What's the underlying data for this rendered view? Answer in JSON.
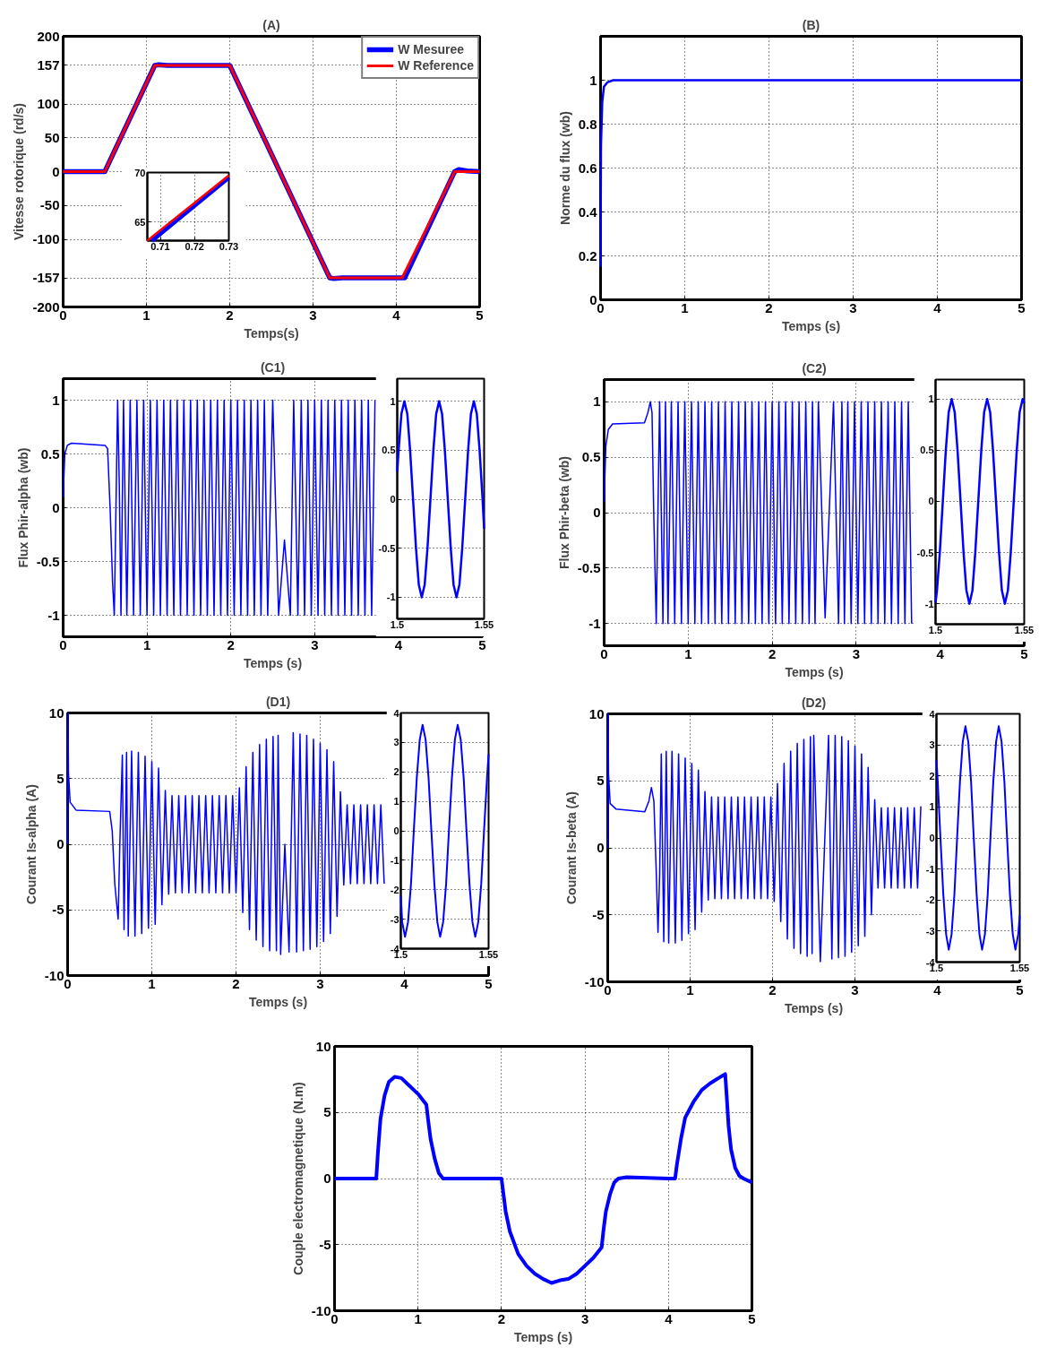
{
  "chart_data": [
    {
      "type": "line",
      "title": "(A)",
      "xlabel": "Temps(s)",
      "ylabel": "Vitesse rotorique (rd/s)",
      "xlim": [
        0,
        5
      ],
      "ylim": [
        -200,
        200
      ],
      "xticks": [
        0,
        1,
        2,
        3,
        4,
        5
      ],
      "yticks": [
        -200,
        -157,
        -100,
        -50,
        0,
        50,
        100,
        157,
        200
      ],
      "grid": true,
      "legend": "top right",
      "series": [
        {
          "name": "W Mesuree",
          "color": "#0000ff",
          "x": [
            0,
            0.5,
            1.1,
            1.15,
            1.25,
            2,
            3.2,
            3.25,
            3.35,
            4.1,
            4.7,
            4.75,
            4.85,
            5
          ],
          "values": [
            0,
            0,
            157,
            158,
            157,
            157,
            -157,
            -158,
            -157,
            -157,
            0,
            3,
            1,
            0
          ]
        },
        {
          "name": "W Reference",
          "color": "#ff0000",
          "x": [
            0,
            0.5,
            1.1,
            2,
            3.2,
            4.07,
            4.7,
            5
          ],
          "values": [
            0,
            0,
            157,
            157,
            -157,
            -157,
            0,
            0
          ]
        }
      ]
    },
    {
      "type": "line",
      "xlim": [
        0.7062,
        0.73
      ],
      "ylim": [
        63.1,
        70
      ],
      "xticks": [
        0.71,
        0.72,
        0.73
      ],
      "yticks": [
        65,
        70
      ],
      "grid": true,
      "series": [
        {
          "color": "#0000ff",
          "x": [
            0.7075,
            0.73
          ],
          "values": [
            63.1,
            69.5
          ]
        },
        {
          "color": "#ff0000",
          "x": [
            0.7062,
            0.73
          ],
          "values": [
            63.1,
            69.7
          ]
        }
      ]
    },
    {
      "type": "line",
      "title": "(B)",
      "xlabel": "Temps (s)",
      "ylabel": "Norme du flux (wb)",
      "xlim": [
        0,
        5
      ],
      "ylim": [
        0,
        1.2
      ],
      "xticks": [
        0,
        1,
        2,
        3,
        4,
        5
      ],
      "yticks": [
        0,
        0.2,
        0.4,
        0.6,
        0.8,
        1
      ],
      "grid": true,
      "series": [
        {
          "color": "#0000ff",
          "x": [
            0,
            0.005,
            0.02,
            0.04,
            0.08,
            0.15,
            5
          ],
          "values": [
            0.15,
            0.7,
            0.9,
            0.97,
            0.99,
            1,
            1
          ]
        }
      ]
    },
    {
      "type": "line",
      "title": "(C1)",
      "xlabel": "Temps (s)",
      "ylabel": "Flux Phir-alpha (wb)",
      "xlim": [
        0,
        5
      ],
      "ylim": [
        -1.2,
        1.2
      ],
      "xticks": [
        0,
        1,
        2,
        3,
        4,
        5
      ],
      "yticks": [
        -1,
        -0.5,
        0,
        0.5,
        1
      ],
      "grid": true,
      "series": [
        {
          "color": "#0000ff",
          "x": [
            0,
            0.02,
            0.05,
            0.1,
            0.5,
            0.53,
            0.56,
            0.59,
            0.61,
            0.63,
            0.65,
            0.67,
            0.69,
            0.72,
            0.76,
            0.8,
            0.84,
            0.88,
            0.92,
            0.96,
            1,
            1.04,
            1.08,
            1.12,
            1.16,
            1.2,
            1.24,
            1.28,
            1.32,
            1.36,
            1.4,
            1.44,
            1.48,
            1.52,
            1.56,
            1.6,
            1.64,
            1.68,
            1.72,
            1.76,
            1.8,
            1.84,
            1.88,
            1.92,
            1.96,
            2,
            2.04,
            2.08,
            2.12,
            2.16,
            2.2,
            2.24,
            2.28,
            2.32,
            2.36,
            2.4,
            2.44,
            2.5,
            2.57,
            2.64,
            2.71,
            2.75,
            2.8,
            2.84,
            2.88,
            2.92,
            2.96,
            3,
            3.04,
            3.08,
            3.12,
            3.16,
            3.2,
            3.24,
            3.28,
            3.32,
            3.36,
            3.4,
            3.44,
            3.48,
            3.52,
            3.56,
            3.6,
            3.64,
            3.68,
            3.72
          ],
          "values": [
            0.1,
            0.5,
            0.58,
            0.6,
            0.58,
            0.55,
            0,
            -0.7,
            -1,
            0,
            1,
            0.2,
            -1,
            1,
            -1,
            1,
            -1,
            1,
            -1,
            1,
            -1,
            1,
            -1,
            1,
            -1,
            1,
            -1,
            1,
            -1,
            1,
            -1,
            1,
            -1,
            1,
            -1,
            1,
            -1,
            1,
            -1,
            1,
            -1,
            1,
            -1,
            1,
            -1,
            1,
            -1,
            1,
            -1,
            1,
            -1,
            1,
            -1,
            1,
            -1,
            1,
            -1,
            1,
            -1,
            -0.3,
            -1,
            1,
            -1,
            1,
            -1,
            1,
            -1,
            1,
            -1,
            1,
            -1,
            1,
            -1,
            1,
            -1,
            1,
            -1,
            1,
            -1,
            1,
            -1,
            1,
            -1,
            1,
            -1,
            1
          ]
        }
      ]
    },
    {
      "type": "line",
      "x": [
        1.5,
        1.5008,
        1.5024,
        1.5041,
        1.5058,
        1.5074,
        1.5091,
        1.5108,
        1.5124,
        1.5141,
        1.5158,
        1.5174,
        1.5191,
        1.5208,
        1.5224,
        1.5241,
        1.5258,
        1.5274,
        1.5291,
        1.5308,
        1.5324,
        1.5341,
        1.5358,
        1.5374,
        1.5391,
        1.5408,
        1.5424,
        1.5441,
        1.5458,
        1.5474,
        1.5491,
        1.55
      ],
      "xlim": [
        1.5,
        1.55
      ],
      "ylim": [
        -1.22,
        1.23
      ],
      "xticks": [
        1.5,
        1.55
      ],
      "yticks": [
        -1,
        -0.5,
        0,
        0.5,
        1
      ],
      "grid": "y",
      "series": [
        {
          "color": "#0000ff",
          "values": [
            0.28,
            0.5,
            0.87,
            1,
            0.87,
            0.5,
            0,
            -0.5,
            -0.87,
            -1,
            -0.87,
            -0.5,
            0,
            0.5,
            0.87,
            1,
            0.87,
            0.5,
            0,
            -0.5,
            -0.87,
            -1,
            -0.87,
            -0.5,
            0,
            0.5,
            0.87,
            1,
            0.87,
            0.5,
            0,
            -0.3
          ]
        }
      ]
    },
    {
      "type": "line",
      "title": "(C2)",
      "xlabel": "Temps (s)",
      "ylabel": "Flux Phir-beta (wb)",
      "xlim": [
        0,
        5
      ],
      "ylim": [
        -1.2,
        1.2
      ],
      "xticks": [
        0,
        1,
        2,
        3,
        4,
        5
      ],
      "yticks": [
        -1,
        -0.5,
        0,
        0.5,
        1
      ],
      "grid": true,
      "series": [
        {
          "color": "#0000ff",
          "x": [
            0,
            0.02,
            0.05,
            0.1,
            0.48,
            0.52,
            0.55,
            0.57,
            0.59,
            0.62,
            0.66,
            0.7,
            0.73,
            0.76,
            0.8,
            0.84,
            0.88,
            0.92,
            0.96,
            1,
            1.04,
            1.08,
            1.12,
            1.16,
            1.2,
            1.24,
            1.28,
            1.32,
            1.36,
            1.4,
            1.44,
            1.48,
            1.52,
            1.56,
            1.6,
            1.64,
            1.68,
            1.72,
            1.76,
            1.8,
            1.84,
            1.88,
            1.92,
            1.96,
            2,
            2.04,
            2.08,
            2.12,
            2.16,
            2.2,
            2.24,
            2.28,
            2.32,
            2.36,
            2.4,
            2.44,
            2.48,
            2.51,
            2.55,
            2.63,
            2.73,
            2.79,
            2.83,
            2.86,
            2.9,
            2.94,
            2.98,
            3.02,
            3.06,
            3.1,
            3.14,
            3.18,
            3.22,
            3.26,
            3.3,
            3.34,
            3.38,
            3.42,
            3.46,
            3.5,
            3.54,
            3.58,
            3.62,
            3.66
          ],
          "values": [
            0.1,
            0.6,
            0.75,
            0.8,
            0.81,
            0.9,
            1,
            0.9,
            0,
            -1,
            1,
            -1,
            1,
            -1,
            1,
            -1,
            1,
            -1,
            1,
            -1,
            1,
            -1,
            1,
            -1,
            1,
            -1,
            1,
            -1,
            1,
            -1,
            1,
            -1,
            1,
            -1,
            1,
            -1,
            1,
            -1,
            1,
            -1,
            1,
            -1,
            1,
            -1,
            1,
            -1,
            1,
            -1,
            1,
            -1,
            1,
            -1,
            1,
            -1,
            1,
            -1,
            1,
            -1,
            1,
            -0.95,
            1,
            -1,
            1,
            -1,
            1,
            -1,
            1,
            -1,
            1,
            -1,
            1,
            -1,
            1,
            -1,
            1,
            -1,
            1,
            -1,
            1,
            -1,
            1,
            -1,
            1,
            -1
          ]
        }
      ]
    },
    {
      "type": "line",
      "x": [
        1.5,
        1.5008,
        1.5024,
        1.5041,
        1.5058,
        1.5074,
        1.5091,
        1.5108,
        1.5124,
        1.5141,
        1.5158,
        1.5174,
        1.5191,
        1.5208,
        1.5224,
        1.5241,
        1.5258,
        1.5274,
        1.5291,
        1.5308,
        1.5324,
        1.5341,
        1.5358,
        1.5374,
        1.5391,
        1.5408,
        1.5424,
        1.5441,
        1.5458,
        1.5474,
        1.5491,
        1.55
      ],
      "xlim": [
        1.5,
        1.55
      ],
      "ylim": [
        -1.2,
        1.19
      ],
      "xticks": [
        1.5,
        1.55
      ],
      "yticks": [
        -1,
        -0.5,
        0,
        0.5,
        1
      ],
      "grid": "y",
      "series": [
        {
          "color": "#0000ff",
          "values": [
            -0.99,
            -0.87,
            -0.5,
            0,
            0.5,
            0.87,
            1,
            0.87,
            0.5,
            0,
            -0.5,
            -0.87,
            -1,
            -0.87,
            -0.5,
            0,
            0.5,
            0.87,
            1,
            0.87,
            0.5,
            0,
            -0.5,
            -0.87,
            -1,
            -0.87,
            -0.5,
            0,
            0.5,
            0.87,
            1,
            0.96
          ]
        }
      ]
    },
    {
      "type": "line",
      "title": "(D1)",
      "xlabel": "Temps (s)",
      "ylabel": "Courant Is-alpha (A)",
      "xlim": [
        0,
        5
      ],
      "ylim": [
        -10,
        10
      ],
      "xticks": [
        0,
        1,
        2,
        3,
        4,
        5
      ],
      "yticks": [
        -10,
        -5,
        0,
        5,
        10
      ],
      "grid": true,
      "series": [
        {
          "color": "#0000ff",
          "x": [
            0,
            0.005,
            0.01,
            0.03,
            0.1,
            0.5,
            0.53,
            0.56,
            0.6,
            0.62,
            0.65,
            0.67,
            0.7,
            0.72,
            0.76,
            0.8,
            0.84,
            0.88,
            0.92,
            0.96,
            1,
            1.04,
            1.08,
            1.12,
            1.16,
            1.2,
            1.24,
            1.28,
            1.32,
            1.36,
            1.4,
            1.44,
            1.48,
            1.52,
            1.56,
            1.6,
            1.64,
            1.68,
            1.72,
            1.76,
            1.8,
            1.84,
            1.88,
            1.92,
            1.96,
            2,
            2.04,
            2.08,
            2.12,
            2.16,
            2.2,
            2.24,
            2.28,
            2.32,
            2.36,
            2.4,
            2.44,
            2.48,
            2.5,
            2.53,
            2.58,
            2.63,
            2.68,
            2.72,
            2.76,
            2.8,
            2.84,
            2.88,
            2.92,
            2.96,
            3,
            3.04,
            3.08,
            3.12,
            3.16,
            3.2,
            3.24,
            3.28,
            3.32,
            3.36,
            3.4,
            3.44,
            3.48,
            3.52,
            3.56,
            3.6,
            3.64,
            3.68,
            3.72,
            3.76
          ],
          "values": [
            0,
            10,
            5.5,
            3.2,
            2.6,
            2.5,
            1,
            -3,
            -5.7,
            0,
            6.8,
            -6.5,
            7,
            -7,
            7.1,
            -7,
            7,
            -6.8,
            6.7,
            -6.4,
            6.3,
            -6.1,
            5.8,
            -4.6,
            4.1,
            -3.8,
            3.7,
            -3.7,
            3.7,
            -3.7,
            3.7,
            -3.7,
            3.7,
            -3.7,
            3.7,
            -3.7,
            3.7,
            -3.7,
            3.7,
            -3.7,
            3.7,
            -3.7,
            3.7,
            -3.7,
            3.7,
            -3.7,
            4.3,
            -5.2,
            5.9,
            -6.5,
            7,
            -7.3,
            7.6,
            -7.8,
            8,
            -8.1,
            8.2,
            -8.1,
            8.3,
            -8.4,
            0,
            -8.2,
            8.5,
            -8.2,
            8.4,
            -8.1,
            8.3,
            -8,
            8,
            -7.8,
            7.7,
            -7.4,
            7.2,
            -6.8,
            6.3,
            -5.5,
            4,
            -3.1,
            3,
            -3,
            3,
            -3,
            3,
            -3,
            3,
            -3,
            3,
            -3,
            3,
            -3
          ]
        }
      ]
    },
    {
      "type": "line",
      "x": [
        1.5,
        1.5008,
        1.5024,
        1.5041,
        1.5058,
        1.5074,
        1.5091,
        1.5108,
        1.5124,
        1.5141,
        1.5158,
        1.5174,
        1.5191,
        1.5208,
        1.5224,
        1.5241,
        1.5258,
        1.5274,
        1.5291,
        1.5308,
        1.5324,
        1.5341,
        1.5358,
        1.5374,
        1.5391,
        1.5408,
        1.5424,
        1.5441,
        1.5458,
        1.5474,
        1.5491,
        1.55
      ],
      "xlim": [
        1.5,
        1.55
      ],
      "ylim": [
        -4,
        4
      ],
      "xticks": [
        1.5,
        1.55
      ],
      "yticks": [
        -4,
        -3,
        -2,
        -1,
        0,
        1,
        2,
        3,
        4
      ],
      "grid": "y",
      "series": [
        {
          "color": "#0000ff",
          "values": [
            -2.2,
            -3.1,
            -3.6,
            -3.1,
            -1.8,
            0,
            1.8,
            3.1,
            3.6,
            3.1,
            1.8,
            0,
            -1.8,
            -3.1,
            -3.6,
            -3.1,
            -1.8,
            0,
            1.8,
            3.1,
            3.6,
            3.1,
            1.8,
            0,
            -1.8,
            -3.1,
            -3.6,
            -3.1,
            -1.8,
            0,
            1.8,
            2.6
          ]
        }
      ]
    },
    {
      "type": "line",
      "title": "(D2)",
      "xlabel": "Temps (s)",
      "ylabel": "Courant Is-beta (A)",
      "xlim": [
        0,
        5
      ],
      "ylim": [
        -10,
        10
      ],
      "xticks": [
        0,
        1,
        2,
        3,
        4,
        5
      ],
      "yticks": [
        -10,
        -5,
        0,
        5,
        10
      ],
      "grid": true,
      "series": [
        {
          "color": "#0000ff",
          "x": [
            0,
            0.005,
            0.01,
            0.03,
            0.1,
            0.45,
            0.5,
            0.53,
            0.56,
            0.59,
            0.61,
            0.63,
            0.65,
            0.68,
            0.71,
            0.74,
            0.78,
            0.82,
            0.86,
            0.9,
            0.94,
            0.98,
            1.02,
            1.06,
            1.1,
            1.14,
            1.18,
            1.22,
            1.26,
            1.3,
            1.34,
            1.38,
            1.42,
            1.46,
            1.5,
            1.54,
            1.58,
            1.62,
            1.66,
            1.7,
            1.74,
            1.78,
            1.82,
            1.86,
            1.9,
            1.94,
            1.98,
            2.02,
            2.06,
            2.1,
            2.14,
            2.18,
            2.22,
            2.26,
            2.3,
            2.34,
            2.38,
            2.42,
            2.46,
            2.48,
            2.5,
            2.58,
            2.68,
            2.72,
            2.76,
            2.8,
            2.84,
            2.88,
            2.92,
            2.96,
            3,
            3.04,
            3.08,
            3.12,
            3.16,
            3.2,
            3.24,
            3.28,
            3.32,
            3.36,
            3.4,
            3.44,
            3.48,
            3.52,
            3.56,
            3.6,
            3.64,
            3.68,
            3.72,
            3.76,
            3.8
          ],
          "values": [
            0,
            10,
            5.5,
            3.3,
            2.9,
            2.7,
            3.5,
            4.5,
            3.5,
            -2,
            -6.3,
            -2,
            7,
            -7,
            7.2,
            -7.1,
            7.2,
            -7.1,
            7,
            -6.9,
            6.7,
            -6.4,
            6.3,
            -6.1,
            5.8,
            -4.8,
            4.2,
            -3.9,
            3.8,
            -3.8,
            3.8,
            -3.8,
            3.8,
            -3.8,
            3.8,
            -3.8,
            3.8,
            -3.8,
            3.8,
            -3.8,
            3.8,
            -3.8,
            3.8,
            -3.8,
            3.8,
            -3.8,
            3.8,
            -4,
            4.8,
            -5.5,
            6.3,
            -6.8,
            7.2,
            -7.5,
            7.8,
            -7.9,
            8.1,
            -8.1,
            8.3,
            -7.9,
            8.4,
            -8.5,
            8.4,
            -8.3,
            8.4,
            -8.2,
            8.3,
            -8.1,
            8,
            -7.8,
            7.6,
            -7.3,
            7,
            -6.6,
            6,
            -5,
            3.6,
            -3,
            3,
            -3,
            3,
            -3,
            3,
            -3,
            3,
            -3,
            3,
            -3,
            3,
            -3,
            3.1
          ]
        }
      ]
    },
    {
      "type": "line",
      "x": [
        1.5,
        1.5008,
        1.5024,
        1.5041,
        1.5058,
        1.5074,
        1.5091,
        1.5108,
        1.5124,
        1.5141,
        1.5158,
        1.5174,
        1.5191,
        1.5208,
        1.5224,
        1.5241,
        1.5258,
        1.5274,
        1.5291,
        1.5308,
        1.5324,
        1.5341,
        1.5358,
        1.5374,
        1.5391,
        1.5408,
        1.5424,
        1.5441,
        1.5458,
        1.5474,
        1.5491,
        1.55
      ],
      "xlim": [
        1.5,
        1.55
      ],
      "ylim": [
        -4,
        4
      ],
      "xticks": [
        1.5,
        1.55
      ],
      "yticks": [
        -4,
        -3,
        -2,
        -1,
        0,
        1,
        2,
        3,
        4
      ],
      "grid": "y",
      "series": [
        {
          "color": "#0000ff",
          "values": [
            2.5,
            1.8,
            0,
            -1.8,
            -3.1,
            -3.6,
            -3.1,
            -1.8,
            0,
            1.8,
            3.1,
            3.6,
            3.1,
            1.8,
            0,
            -1.8,
            -3.1,
            -3.6,
            -3.1,
            -1.8,
            0,
            1.8,
            3.1,
            3.6,
            3.1,
            1.8,
            0,
            -1.8,
            -3.1,
            -3.6,
            -3.1,
            -2.5
          ]
        }
      ]
    },
    {
      "type": "line",
      "xlabel": "Temps (s)",
      "ylabel": "Couple electromagnetique (N.m)",
      "xlim": [
        0,
        5
      ],
      "ylim": [
        -10,
        10
      ],
      "xticks": [
        0,
        1,
        2,
        3,
        4,
        5
      ],
      "yticks": [
        -10,
        -5,
        0,
        5,
        10
      ],
      "grid": true,
      "series": [
        {
          "color": "#0000ff",
          "x": [
            0,
            0.5,
            0.52,
            0.55,
            0.6,
            0.65,
            0.72,
            0.8,
            0.9,
            1,
            1.1,
            1.12,
            1.15,
            1.2,
            1.25,
            1.3,
            1.5,
            2,
            2.02,
            2.05,
            2.1,
            2.2,
            2.3,
            2.4,
            2.5,
            2.6,
            2.7,
            2.8,
            2.9,
            3,
            3.1,
            3.2,
            3.22,
            3.25,
            3.3,
            3.35,
            3.4,
            3.5,
            4,
            4.08,
            4.1,
            4.15,
            4.2,
            4.3,
            4.4,
            4.5,
            4.6,
            4.68,
            4.7,
            4.72,
            4.75,
            4.8,
            4.85,
            4.9,
            5
          ],
          "values": [
            0,
            0,
            2,
            4.5,
            6.3,
            7.3,
            7.7,
            7.6,
            7,
            6.4,
            5.6,
            4.5,
            3,
            1.5,
            0.4,
            0,
            0,
            0,
            -1,
            -2.5,
            -4,
            -5.7,
            -6.6,
            -7.2,
            -7.6,
            -7.9,
            -7.7,
            -7.6,
            -7.2,
            -6.6,
            -6,
            -5.2,
            -4,
            -2.5,
            -1.2,
            -0.3,
            0,
            0.1,
            0,
            0,
            1,
            3,
            4.6,
            5.8,
            6.7,
            7.2,
            7.6,
            7.9,
            6,
            4,
            2.2,
            0.8,
            0.2,
            0,
            -0.3
          ]
        }
      ]
    }
  ]
}
